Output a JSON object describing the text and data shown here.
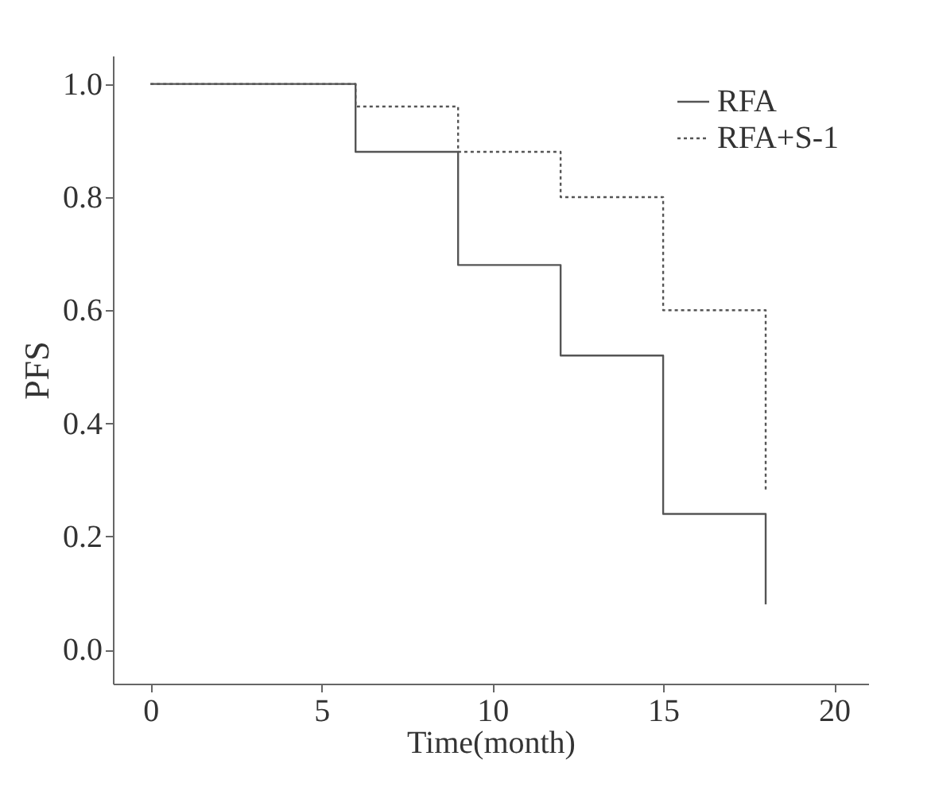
{
  "chart_data": {
    "type": "step",
    "xlabel": "Time(month)",
    "ylabel": "PFS",
    "xlim": [
      -1.1,
      21
    ],
    "xticks": [
      0,
      5,
      10,
      15,
      20
    ],
    "ylim": [
      -0.06,
      1.05
    ],
    "yticks": [
      {
        "value": 0,
        "label": "0.0"
      },
      0.2,
      0.4,
      0.6,
      0.8,
      {
        "value": 1,
        "label": "1.0"
      }
    ],
    "grid": false,
    "legend": "top right",
    "marker": "none",
    "series": [
      {
        "name": "RFA",
        "color": "#555555",
        "line_style": "solid",
        "x": [
          0,
          6,
          9,
          12,
          15,
          18
        ],
        "values": [
          1.0,
          0.88,
          0.68,
          0.52,
          0.24,
          0.08
        ]
      },
      {
        "name": "RFA+S-1",
        "color": "#555555",
        "line_style": "dotted",
        "x": [
          0,
          6,
          9,
          12,
          15,
          18
        ],
        "values": [
          1.0,
          0.96,
          0.88,
          0.8,
          0.6,
          0.28
        ]
      }
    ]
  }
}
